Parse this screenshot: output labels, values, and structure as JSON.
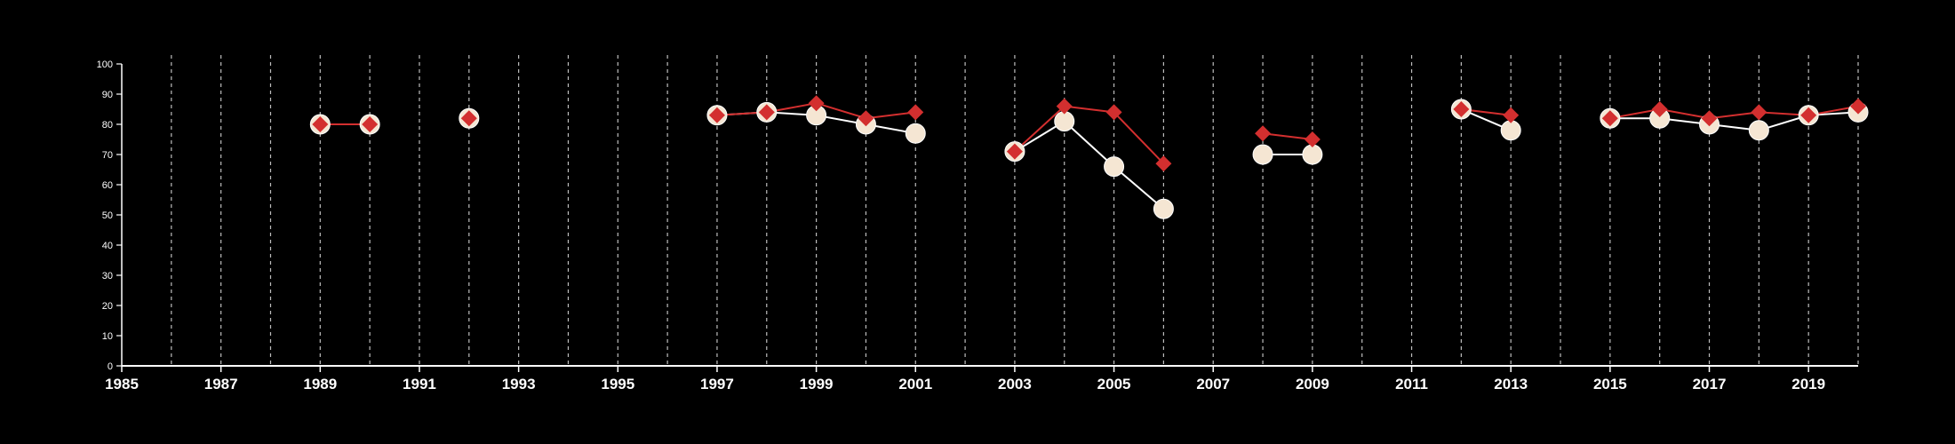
{
  "chart_data": {
    "type": "line",
    "title": "",
    "xlabel": "",
    "ylabel": "",
    "xlim": [
      1985,
      2020
    ],
    "ylim": [
      0,
      100
    ],
    "x_ticks": [
      1985,
      1987,
      1989,
      1991,
      1993,
      1995,
      1997,
      1999,
      2001,
      2003,
      2005,
      2007,
      2009,
      2011,
      2013,
      2015,
      2017,
      2019
    ],
    "y_ticks": [
      0,
      10,
      20,
      30,
      40,
      50,
      60,
      70,
      80,
      90,
      100
    ],
    "vertical_grid_years": [
      1986,
      1987,
      1988,
      1989,
      1990,
      1991,
      1992,
      1993,
      1994,
      1995,
      1996,
      1997,
      1998,
      1999,
      2000,
      2001,
      2002,
      2003,
      2004,
      2005,
      2006,
      2007,
      2008,
      2009,
      2010,
      2011,
      2012,
      2013,
      2014,
      2015,
      2016,
      2017,
      2018,
      2019,
      2020
    ],
    "grid": "vertical dashed",
    "legend": "none",
    "x": [
      1989,
      1990,
      1992,
      1997,
      1998,
      1999,
      2000,
      2001,
      2003,
      2004,
      2005,
      2006,
      2008,
      2009,
      2012,
      2013,
      2015,
      2016,
      2017,
      2018,
      2019,
      2020
    ],
    "series": [
      {
        "marker": "circle",
        "color": "#f5e6d3",
        "line_color": "#ffffff",
        "values": [
          80,
          80,
          82,
          83,
          84,
          83,
          80,
          77,
          71,
          81,
          66,
          52,
          70,
          70,
          85,
          78,
          82,
          82,
          80,
          78,
          83,
          84
        ]
      },
      {
        "marker": "diamond",
        "color": "#d32f2f",
        "line_color": "#d32f2f",
        "values": [
          80,
          80,
          82,
          83,
          84,
          87,
          82,
          84,
          71,
          86,
          84,
          67,
          77,
          75,
          85,
          83,
          82,
          85,
          82,
          84,
          83,
          86
        ]
      }
    ]
  }
}
